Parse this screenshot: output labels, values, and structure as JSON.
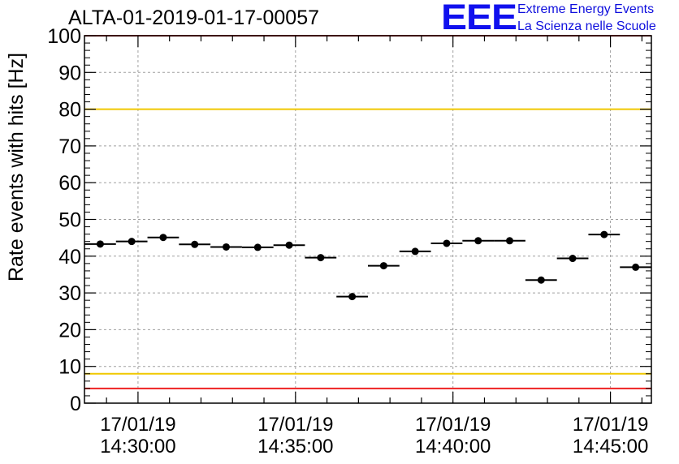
{
  "header": {
    "title": "ALTA-01-2019-01-17-00057",
    "logo_text": "EEE",
    "logo_line1": "Extreme Energy Events",
    "logo_line2": "La Scienza nelle Scuole"
  },
  "colors": {
    "logo": "#1010ee",
    "red_line": "#ee2222",
    "yellow_line": "#f0c800",
    "grid": "#a0a0a0",
    "marker": "#000000"
  },
  "chart_data": {
    "type": "scatter",
    "title": "ALTA-01-2019-01-17-00057",
    "ylabel": "Rate events with hits [Hz]",
    "xlabel": "",
    "ylim": [
      0,
      100
    ],
    "yticks": [
      0,
      10,
      20,
      30,
      40,
      50,
      60,
      70,
      80,
      90,
      100
    ],
    "xlim_minutes": [
      28.3,
      46.3
    ],
    "xticks": [
      {
        "minute": 30,
        "date": "17/01/19",
        "time": "14:30:00"
      },
      {
        "minute": 35,
        "date": "17/01/19",
        "time": "14:35:00"
      },
      {
        "minute": 40,
        "date": "17/01/19",
        "time": "14:40:00"
      },
      {
        "minute": 45,
        "date": "17/01/19",
        "time": "14:45:00"
      }
    ],
    "bin_width_minutes": 1,
    "x_minutes": [
      28.8,
      29.8,
      30.8,
      31.8,
      32.8,
      33.8,
      34.8,
      35.8,
      36.8,
      37.8,
      38.8,
      39.8,
      40.8,
      41.8,
      42.8,
      43.8,
      44.8,
      45.8
    ],
    "values": [
      43.3,
      44.0,
      45.1,
      43.2,
      42.5,
      42.4,
      43.0,
      39.6,
      29.0,
      37.4,
      41.3,
      43.5,
      44.2,
      44.2,
      33.5,
      39.4,
      45.9,
      37.0
    ],
    "hlines": [
      {
        "y": 80,
        "color": "#f0c800",
        "name": "upper-yellow-limit"
      },
      {
        "y": 8,
        "color": "#f0c800",
        "name": "lower-yellow-limit"
      },
      {
        "y": 100,
        "color": "#ee2222",
        "name": "upper-red-limit"
      },
      {
        "y": 4,
        "color": "#ee2222",
        "name": "lower-red-limit"
      }
    ],
    "grid": true
  }
}
